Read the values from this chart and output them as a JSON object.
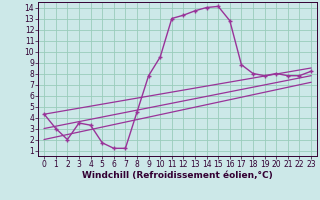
{
  "xlabel": "Windchill (Refroidissement éolien,°C)",
  "bg_color": "#cce8e8",
  "line_color": "#993399",
  "grid_color": "#99ccbb",
  "xlim": [
    -0.5,
    23.5
  ],
  "ylim": [
    0.5,
    14.5
  ],
  "xticks": [
    0,
    1,
    2,
    3,
    4,
    5,
    6,
    7,
    8,
    9,
    10,
    11,
    12,
    13,
    14,
    15,
    16,
    17,
    18,
    19,
    20,
    21,
    22,
    23
  ],
  "yticks": [
    1,
    2,
    3,
    4,
    5,
    6,
    7,
    8,
    9,
    10,
    11,
    12,
    13,
    14
  ],
  "line1_x": [
    0,
    1,
    2,
    3,
    4,
    5,
    6,
    7,
    8,
    9,
    10,
    11,
    12,
    13,
    14,
    15,
    16,
    17,
    18,
    19,
    20,
    21,
    22,
    23
  ],
  "line1_y": [
    4.3,
    3.0,
    2.0,
    3.5,
    3.3,
    1.7,
    1.2,
    1.2,
    4.5,
    7.8,
    9.5,
    13.0,
    13.3,
    13.7,
    14.0,
    14.1,
    12.8,
    8.8,
    8.0,
    7.8,
    8.0,
    7.8,
    7.8,
    8.2
  ],
  "line2_x": [
    0,
    23
  ],
  "line2_y": [
    4.3,
    8.5
  ],
  "line3_x": [
    0,
    23
  ],
  "line3_y": [
    3.0,
    7.8
  ],
  "line4_x": [
    0,
    23
  ],
  "line4_y": [
    2.0,
    7.2
  ],
  "tick_fontsize": 5.5,
  "xlabel_fontsize": 6.5
}
